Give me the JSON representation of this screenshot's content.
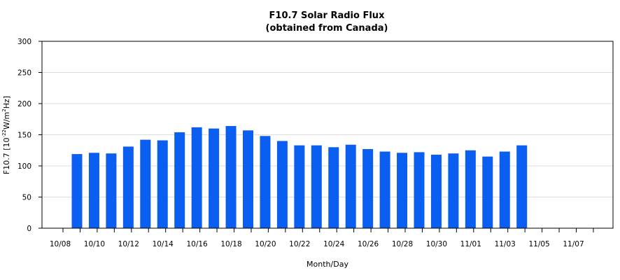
{
  "chart_data": {
    "type": "bar",
    "title": "F10.7 Solar Radio Flux",
    "subtitle": "(obtained from Canada)",
    "xlabel": "Month/Day",
    "ylabel_main": "F10.7 [10",
    "ylabel_exp1": "-22",
    "ylabel_mid": "W/m",
    "ylabel_exp2": "2",
    "ylabel_end": "Hz]",
    "ylim": [
      0,
      300
    ],
    "yticks": [
      0,
      50,
      100,
      150,
      200,
      250,
      300
    ],
    "grid": "horizontal",
    "bar_color": "#0a5ff0",
    "x_tick_labels": [
      "10/08",
      "10/10",
      "10/12",
      "10/14",
      "10/16",
      "10/18",
      "10/20",
      "10/22",
      "10/24",
      "10/26",
      "10/28",
      "10/30",
      "11/01",
      "11/03",
      "11/05",
      "11/07"
    ],
    "categories": [
      "10/08",
      "10/09",
      "10/10",
      "10/11",
      "10/12",
      "10/13",
      "10/14",
      "10/15",
      "10/16",
      "10/17",
      "10/18",
      "10/19",
      "10/20",
      "10/21",
      "10/22",
      "10/23",
      "10/24",
      "10/25",
      "10/26",
      "10/27",
      "10/28",
      "10/29",
      "10/30",
      "10/31",
      "11/01",
      "11/02",
      "11/03",
      "11/04",
      "11/05",
      "11/06",
      "11/07",
      "11/08"
    ],
    "values": [
      119,
      121,
      120,
      131,
      142,
      141,
      154,
      162,
      160,
      164,
      157,
      148,
      140,
      133,
      133,
      130,
      134,
      127,
      123,
      121,
      122,
      118,
      120,
      125,
      115,
      123,
      133,
      null,
      null,
      null,
      null,
      null
    ]
  }
}
